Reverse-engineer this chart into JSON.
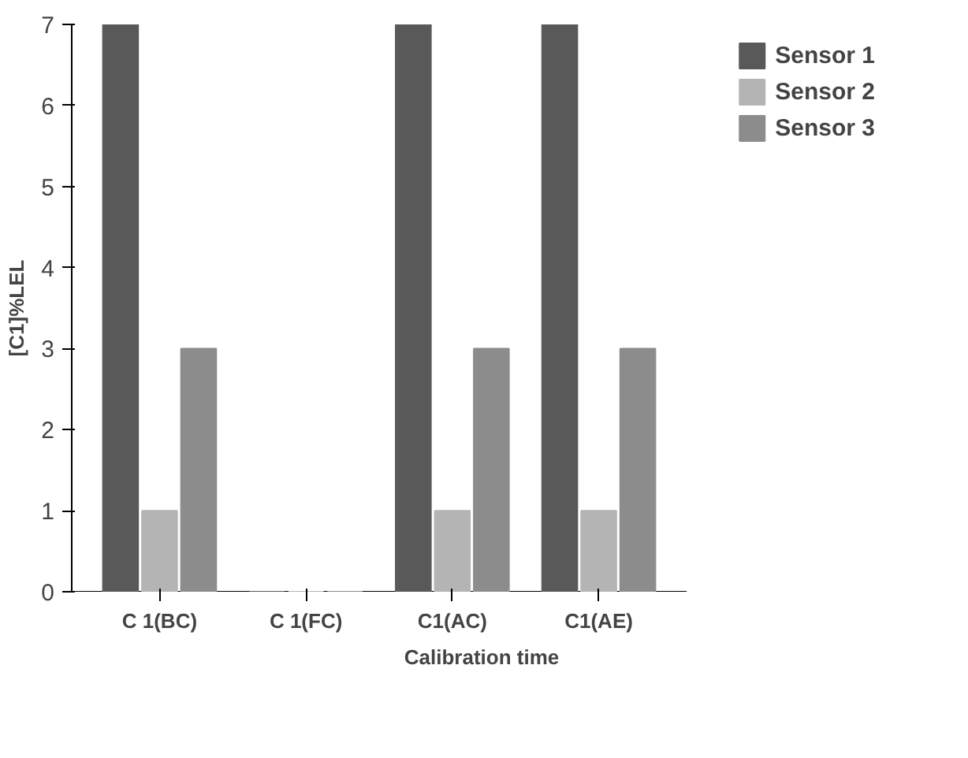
{
  "chart_data": {
    "type": "bar",
    "xlabel": "Calibration time",
    "ylabel": "[C1]%LEL",
    "categories": [
      "C 1(BC)",
      "C 1(FC)",
      "C1(AC)",
      "C1(AE)"
    ],
    "series": [
      {
        "name": "Sensor 1",
        "color": "#595959",
        "values": [
          7,
          0,
          7,
          7
        ]
      },
      {
        "name": "Sensor 2",
        "color": "#b4b4b4",
        "values": [
          1,
          0,
          1,
          1
        ]
      },
      {
        "name": "Sensor 3",
        "color": "#8c8c8c",
        "values": [
          3,
          0,
          3,
          3
        ]
      }
    ],
    "ylim": [
      0,
      7
    ],
    "yticks": [
      0,
      1,
      2,
      3,
      4,
      5,
      6,
      7
    ],
    "grid": false,
    "legend": "right"
  }
}
